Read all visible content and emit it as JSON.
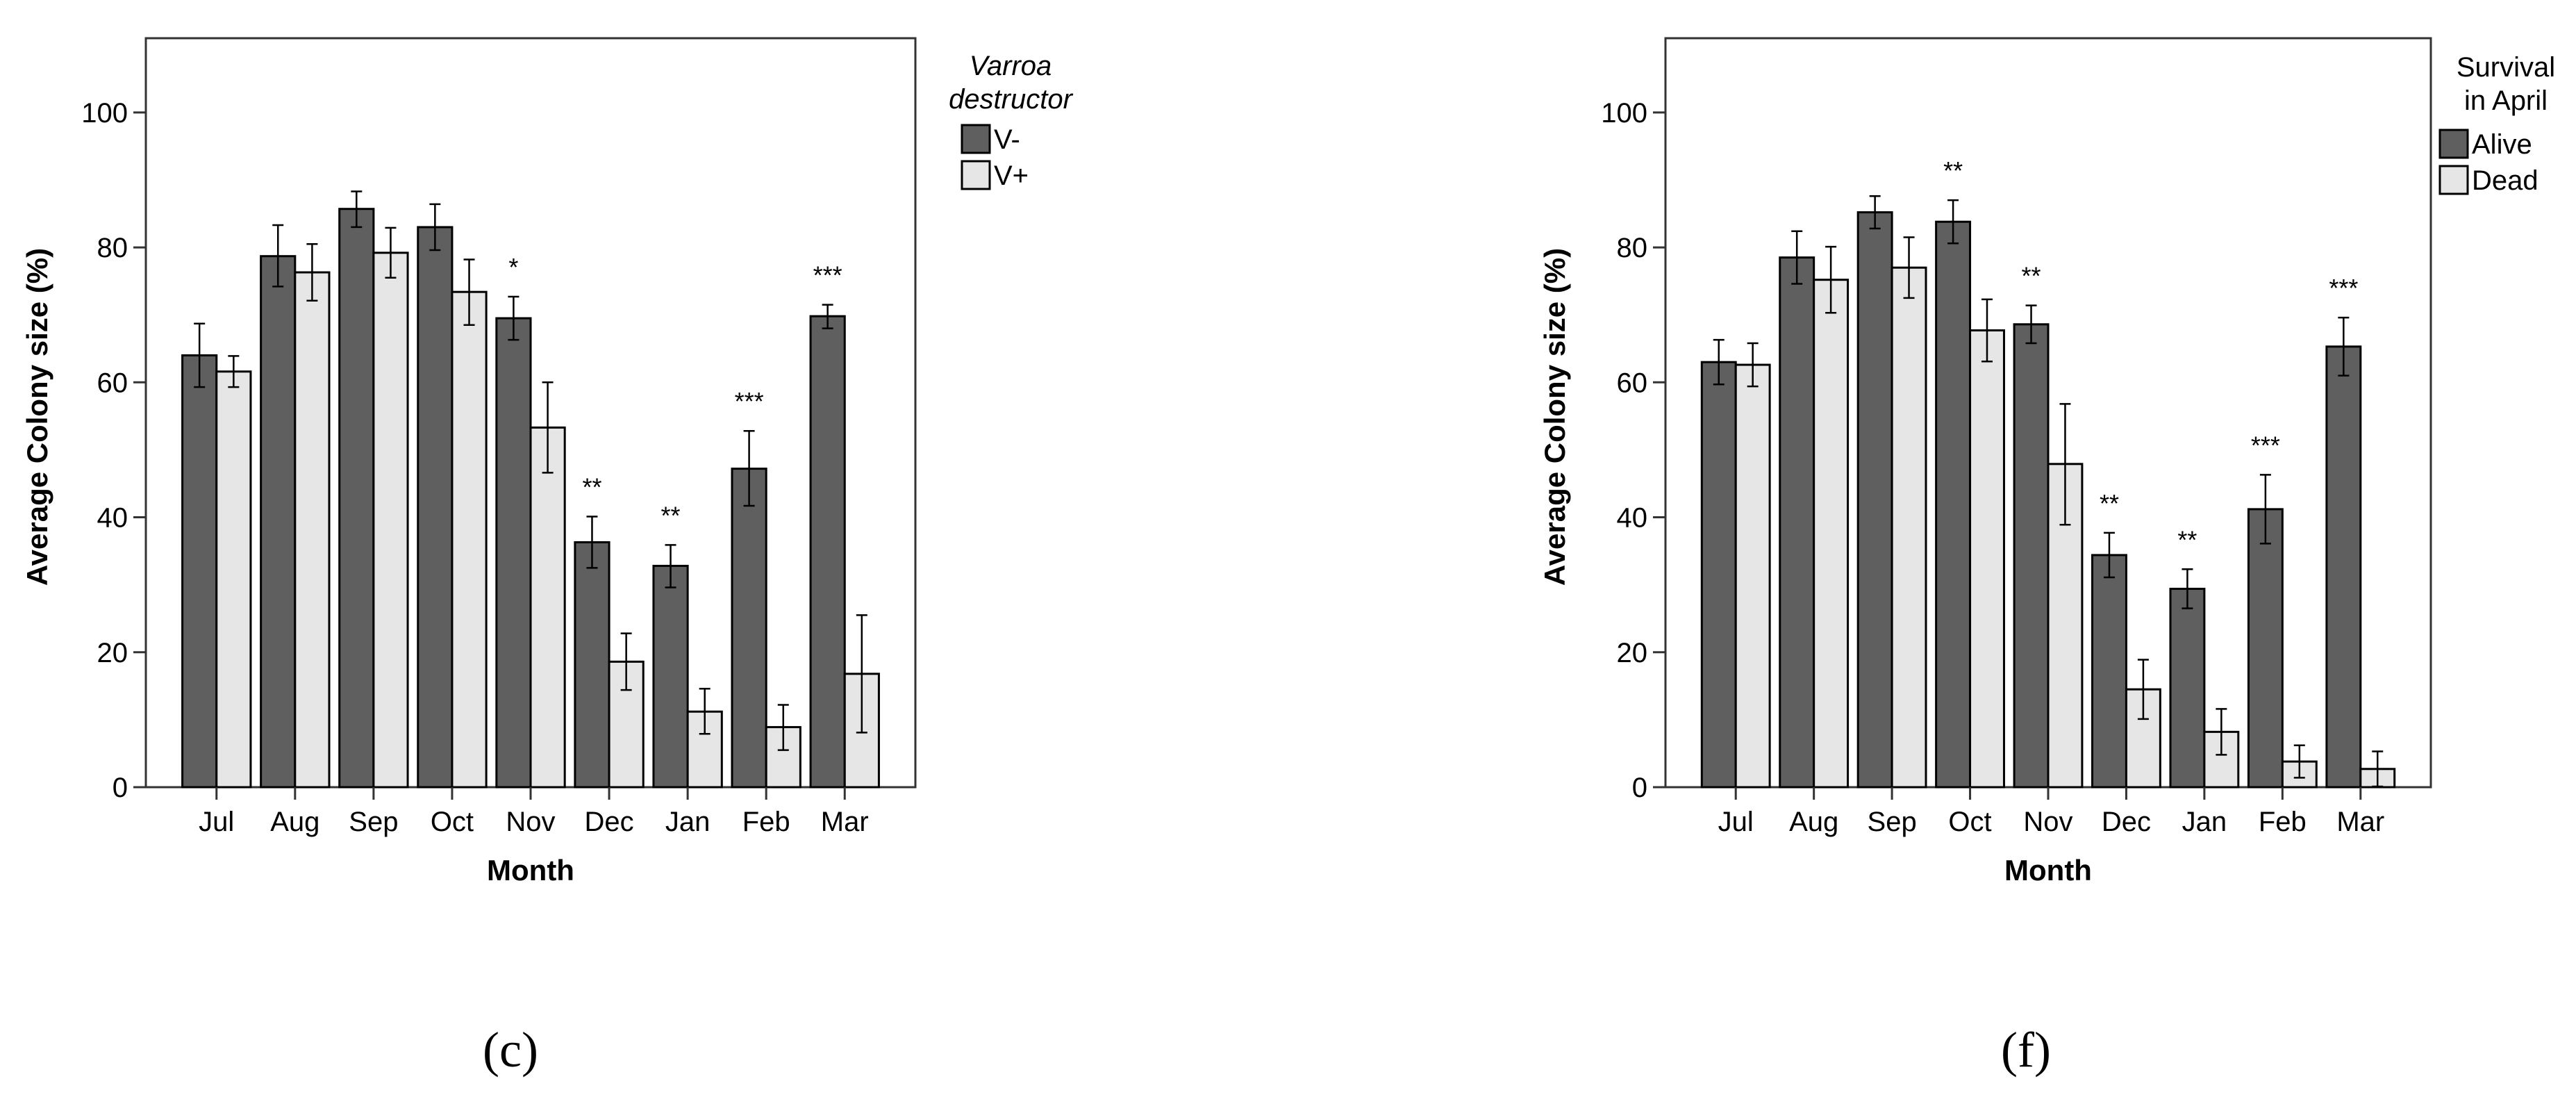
{
  "colors": {
    "dark_bar": "#5f5f5f",
    "light_bar": "#e6e6e6",
    "stroke": "#000000",
    "axis": "#333333"
  },
  "chart_data": [
    {
      "type": "bar",
      "panel_label": "(c)",
      "xlabel": "Month",
      "ylabel": "Average Colony size (%)",
      "ylim": [
        0,
        111
      ],
      "yticks": [
        0,
        20,
        40,
        60,
        80,
        100
      ],
      "categories": [
        "Jul",
        "Aug",
        "Sep",
        "Oct",
        "Nov",
        "Dec",
        "Jan",
        "Feb",
        "Mar"
      ],
      "legend": {
        "title_lines": [
          "Varroa",
          "destructor"
        ],
        "title_italic": true,
        "placement": "right"
      },
      "series": [
        {
          "name": "V-",
          "color": "#5f5f5f",
          "values": [
            64.0,
            78.7,
            85.7,
            83.0,
            69.5,
            36.3,
            32.8,
            47.2,
            69.8
          ],
          "error_low": [
            59.3,
            74.2,
            83.0,
            79.6,
            66.3,
            32.5,
            29.6,
            41.7,
            68.0
          ],
          "error_high": [
            68.7,
            83.3,
            88.3,
            86.4,
            72.7,
            40.1,
            35.9,
            52.8,
            71.5
          ]
        },
        {
          "name": "V+",
          "color": "#e6e6e6",
          "values": [
            61.6,
            76.3,
            79.2,
            73.4,
            53.3,
            18.6,
            11.2,
            8.9,
            16.8
          ],
          "error_low": [
            59.3,
            72.1,
            75.5,
            68.5,
            46.6,
            14.4,
            7.9,
            5.5,
            8.1
          ],
          "error_high": [
            63.9,
            80.5,
            82.9,
            78.2,
            60.0,
            22.8,
            14.6,
            12.2,
            25.5
          ]
        }
      ],
      "annotations": [
        "",
        "",
        "",
        "",
        "*",
        "**",
        "**",
        "***",
        "***"
      ]
    },
    {
      "type": "bar",
      "panel_label": "(f)",
      "xlabel": "Month",
      "ylabel": "Average Colony size (%)",
      "ylim": [
        0,
        111
      ],
      "yticks": [
        0,
        20,
        40,
        60,
        80,
        100
      ],
      "categories": [
        "Jul",
        "Aug",
        "Sep",
        "Oct",
        "Nov",
        "Dec",
        "Jan",
        "Feb",
        "Mar"
      ],
      "legend": {
        "title_lines": [
          "Survival",
          "in April"
        ],
        "title_italic": false,
        "placement": "right"
      },
      "series": [
        {
          "name": "Alive",
          "color": "#5f5f5f",
          "values": [
            63.0,
            78.5,
            85.2,
            83.8,
            68.6,
            34.4,
            29.4,
            41.2,
            65.3
          ],
          "error_low": [
            59.7,
            74.6,
            82.8,
            80.6,
            65.8,
            31.1,
            26.5,
            36.1,
            61.0
          ],
          "error_high": [
            66.3,
            82.4,
            87.6,
            87.0,
            71.4,
            37.7,
            32.3,
            46.3,
            69.6
          ]
        },
        {
          "name": "Dead",
          "color": "#e6e6e6",
          "values": [
            62.6,
            75.2,
            77.0,
            67.7,
            47.9,
            14.5,
            8.2,
            3.8,
            2.7
          ],
          "error_low": [
            59.4,
            70.3,
            72.5,
            63.1,
            38.9,
            10.1,
            4.8,
            1.4,
            0.1
          ],
          "error_high": [
            65.8,
            80.1,
            81.5,
            72.3,
            56.8,
            18.9,
            11.6,
            6.2,
            5.3
          ]
        }
      ],
      "annotations": [
        "",
        "",
        "",
        "**",
        "**",
        "**",
        "**",
        "***",
        "***"
      ]
    }
  ]
}
